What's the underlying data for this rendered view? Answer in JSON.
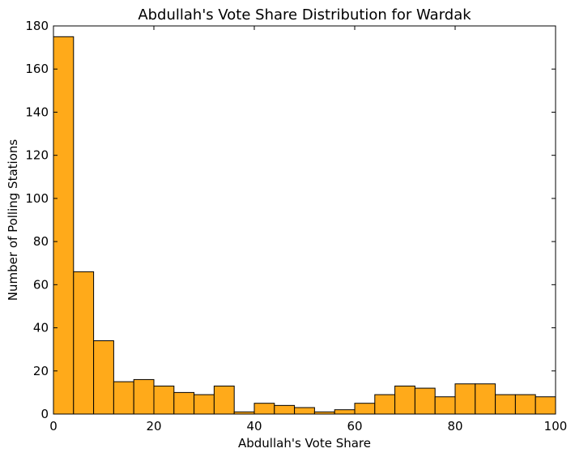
{
  "chart_data": {
    "type": "bar",
    "title": "Abdullah's Vote Share Distribution for Wardak",
    "xlabel": "Abdullah's Vote Share",
    "ylabel": "Number of Polling Stations",
    "xlim": [
      0,
      100
    ],
    "ylim": [
      0,
      180
    ],
    "xticks": [
      0,
      20,
      40,
      60,
      80,
      100
    ],
    "yticks": [
      0,
      20,
      40,
      60,
      80,
      100,
      120,
      140,
      160,
      180
    ],
    "bin_edges": [
      0,
      4,
      8,
      12,
      16,
      20,
      24,
      28,
      32,
      36,
      40,
      44,
      48,
      52,
      56,
      60,
      64,
      68,
      72,
      76,
      80,
      84,
      88,
      92,
      96,
      100
    ],
    "values": [
      175,
      66,
      34,
      15,
      16,
      13,
      10,
      9,
      13,
      1,
      5,
      4,
      3,
      1,
      2,
      5,
      9,
      13,
      12,
      8,
      14,
      14,
      9,
      9,
      8
    ],
    "bar_color": "#FFAA1A",
    "edge_color": "#000000",
    "grid": false,
    "legend": false
  }
}
